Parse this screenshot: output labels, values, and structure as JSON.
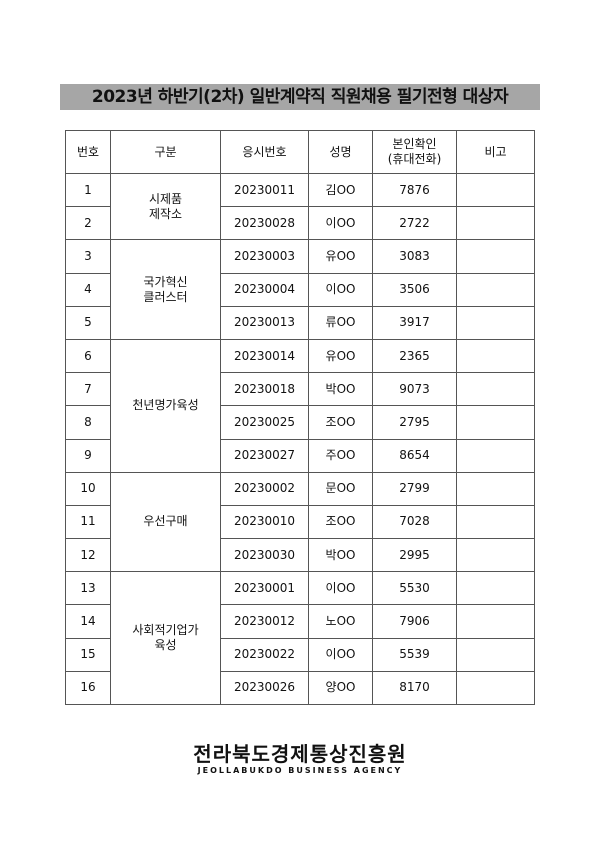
{
  "header": {
    "title": "2023년 하반기(2차) 일반계약직 직원채용 필기전형 대상자"
  },
  "table": {
    "headers": [
      "번호",
      "구분",
      "응시번호",
      "성명",
      "본인확인\n(휴대전화)",
      "비고"
    ],
    "groups": [
      {
        "label": "시제품\n제작소",
        "rows": [
          [
            "1",
            "20230011",
            "김OO",
            "7876"
          ],
          [
            "2",
            "20230028",
            "이OO",
            "2722"
          ]
        ]
      },
      {
        "label": "국가혁신\n클러스터",
        "rows": [
          [
            "3",
            "20230003",
            "유OO",
            "3083"
          ],
          [
            "4",
            "20230004",
            "이OO",
            "3506"
          ],
          [
            "5",
            "20230013",
            "류OO",
            "3917"
          ]
        ]
      },
      {
        "label": "천년명가육성",
        "rows": [
          [
            "6",
            "20230014",
            "유OO",
            "2365"
          ],
          [
            "7",
            "20230018",
            "박OO",
            "9073"
          ],
          [
            "8",
            "20230025",
            "조OO",
            "2795"
          ],
          [
            "9",
            "20230027",
            "주OO",
            "8654"
          ]
        ]
      },
      {
        "label": "우선구매",
        "rows": [
          [
            "10",
            "20230002",
            "문OO",
            "2799"
          ],
          [
            "11",
            "20230010",
            "조OO",
            "7028"
          ],
          [
            "12",
            "20230030",
            "박OO",
            "2995"
          ]
        ]
      },
      {
        "label": "사회적기업가\n육성",
        "rows": [
          [
            "13",
            "20230001",
            "이OO",
            "5530"
          ],
          [
            "14",
            "20230012",
            "노OO",
            "7906"
          ],
          [
            "15",
            "20230022",
            "이OO",
            "5539"
          ],
          [
            "16",
            "20230026",
            "양OO",
            "8170"
          ]
        ]
      }
    ]
  },
  "footer": {
    "name": "전라북도경제통상진흥원",
    "english": "JEOLLABUKDO BUSINESS AGENCY"
  }
}
